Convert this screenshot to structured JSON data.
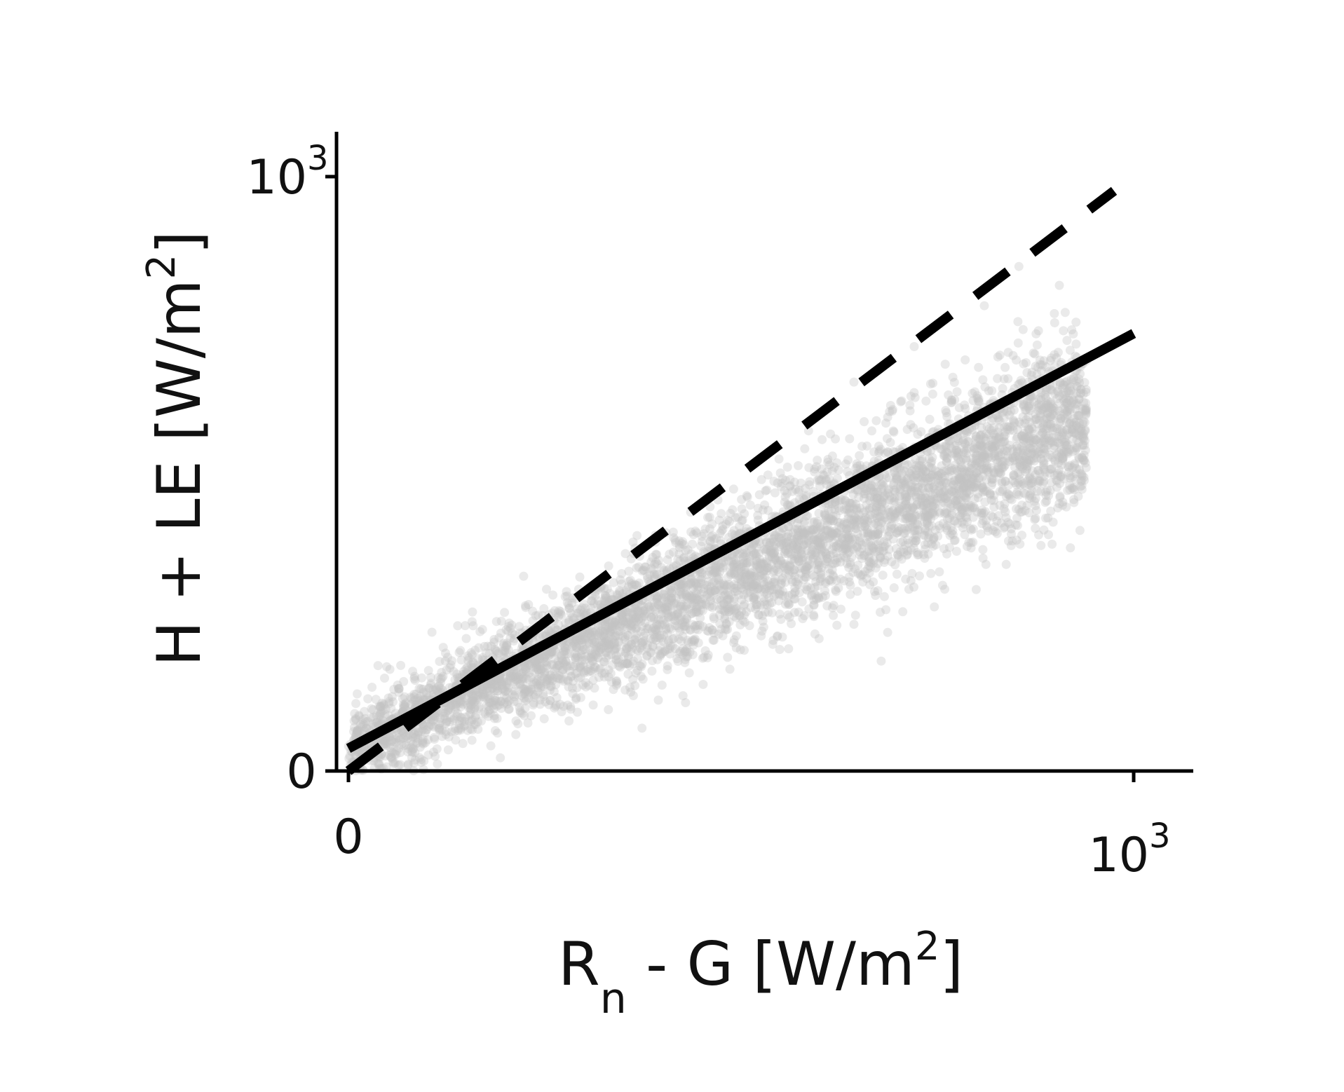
{
  "chart_data": {
    "type": "scatter",
    "title": "",
    "xlabel": {
      "main": "R",
      "sub": "n",
      "rest": " - G [W/m",
      "sup": "2",
      "close": "]"
    },
    "ylabel": {
      "main": "H + LE [W/m",
      "sup": "2",
      "close": "]"
    },
    "xlim": [
      -15,
      1075
    ],
    "ylim": [
      0,
      1070
    ],
    "grid": false,
    "legend": "none",
    "x_ticks": [
      {
        "value": 0,
        "base": "0",
        "exp": ""
      },
      {
        "value": 1000,
        "base": "10",
        "exp": "3"
      }
    ],
    "y_ticks": [
      {
        "value": 0,
        "base": "0",
        "exp": ""
      },
      {
        "value": 1000,
        "base": "10",
        "exp": "3"
      }
    ],
    "scatter_color": "#c4c4c4",
    "scatter_opacity": 0.35,
    "scatter_band": {
      "x_range": [
        0,
        940
      ],
      "y_fit_slope": 0.59,
      "y_fit_intercept": 40,
      "spread_sd": 75
    },
    "lines": [
      {
        "style": "solid",
        "color": "#000000",
        "x": [
          0,
          1000
        ],
        "y": [
          38,
          736
        ]
      },
      {
        "style": "dashed",
        "color": "#000000",
        "x": [
          0,
          975
        ],
        "y": [
          0,
          976
        ]
      }
    ],
    "colors": {
      "axis": "#000000",
      "text": "#111111"
    }
  }
}
